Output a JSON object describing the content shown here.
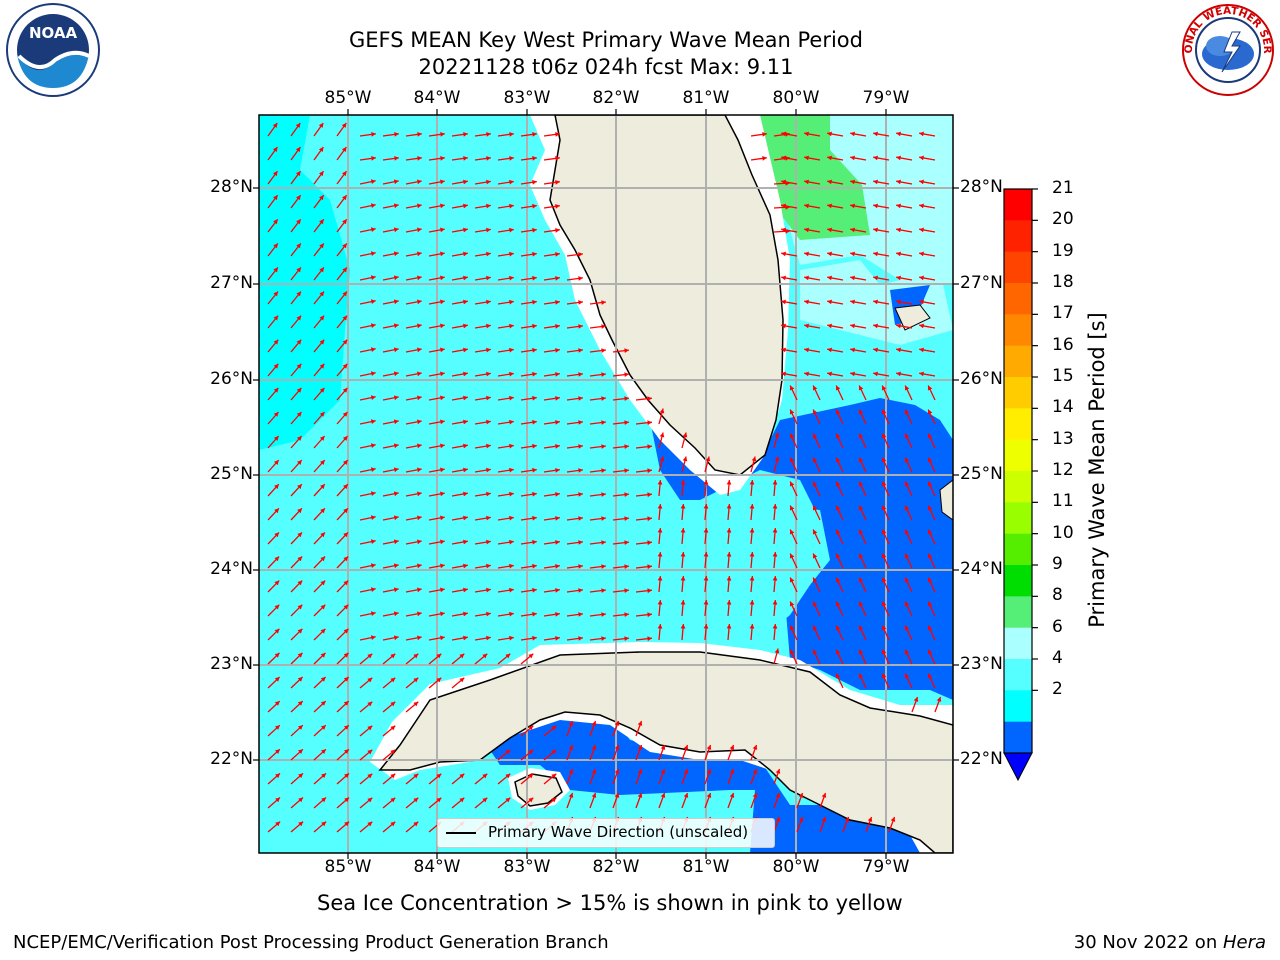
{
  "title_line1": "GEFS MEAN Key West Primary Wave Mean Period",
  "title_line2": "20221128 t06z 024h fcst   Max: 9.11",
  "lon_labels": [
    "85°W",
    "84°W",
    "83°W",
    "82°W",
    "81°W",
    "80°W",
    "79°W"
  ],
  "lat_labels": [
    "28°N",
    "27°N",
    "26°N",
    "25°N",
    "24°N",
    "23°N",
    "22°N"
  ],
  "legend_label": "Primary Wave Direction (unscaled)",
  "colorbar": {
    "label": "Primary Wave Mean Period [s]",
    "ticks": [
      "21",
      "20",
      "19",
      "18",
      "17",
      "16",
      "15",
      "14",
      "13",
      "12",
      "11",
      "10",
      "9",
      "8",
      "6",
      "4",
      "2"
    ],
    "colors": [
      "#ff0000",
      "#ff2200",
      "#ff4400",
      "#ff6600",
      "#ff8800",
      "#ffaa00",
      "#ffcc00",
      "#ffee00",
      "#eeff00",
      "#ccff00",
      "#99ff00",
      "#55ee00",
      "#00dd00",
      "#55ee77",
      "#aaffff",
      "#55ffff",
      "#00ffff",
      "#0066ff"
    ],
    "under_color": "#0000ff"
  },
  "subtitle": "Sea Ice Concentration > 15% is shown in pink to yellow",
  "footer_left": "NCEP/EMC/Verification Post Processing Product Generation Branch",
  "footer_right_date": "30 Nov 2022 on ",
  "footer_right_host": "Hera",
  "logos": {
    "noaa": "NOAA",
    "nws": "NATIONAL WEATHER SERVICE"
  },
  "colors": {
    "land": "#eeecdc",
    "arrow": "#ff0000",
    "grid": "#b0b0b0",
    "sea_4_6": "#00ffff",
    "sea_6_8": "#55ffff",
    "sea_8_9": "#aaffff",
    "sea_9_10": "#55ee77",
    "sea_2_4": "#0066ff"
  }
}
